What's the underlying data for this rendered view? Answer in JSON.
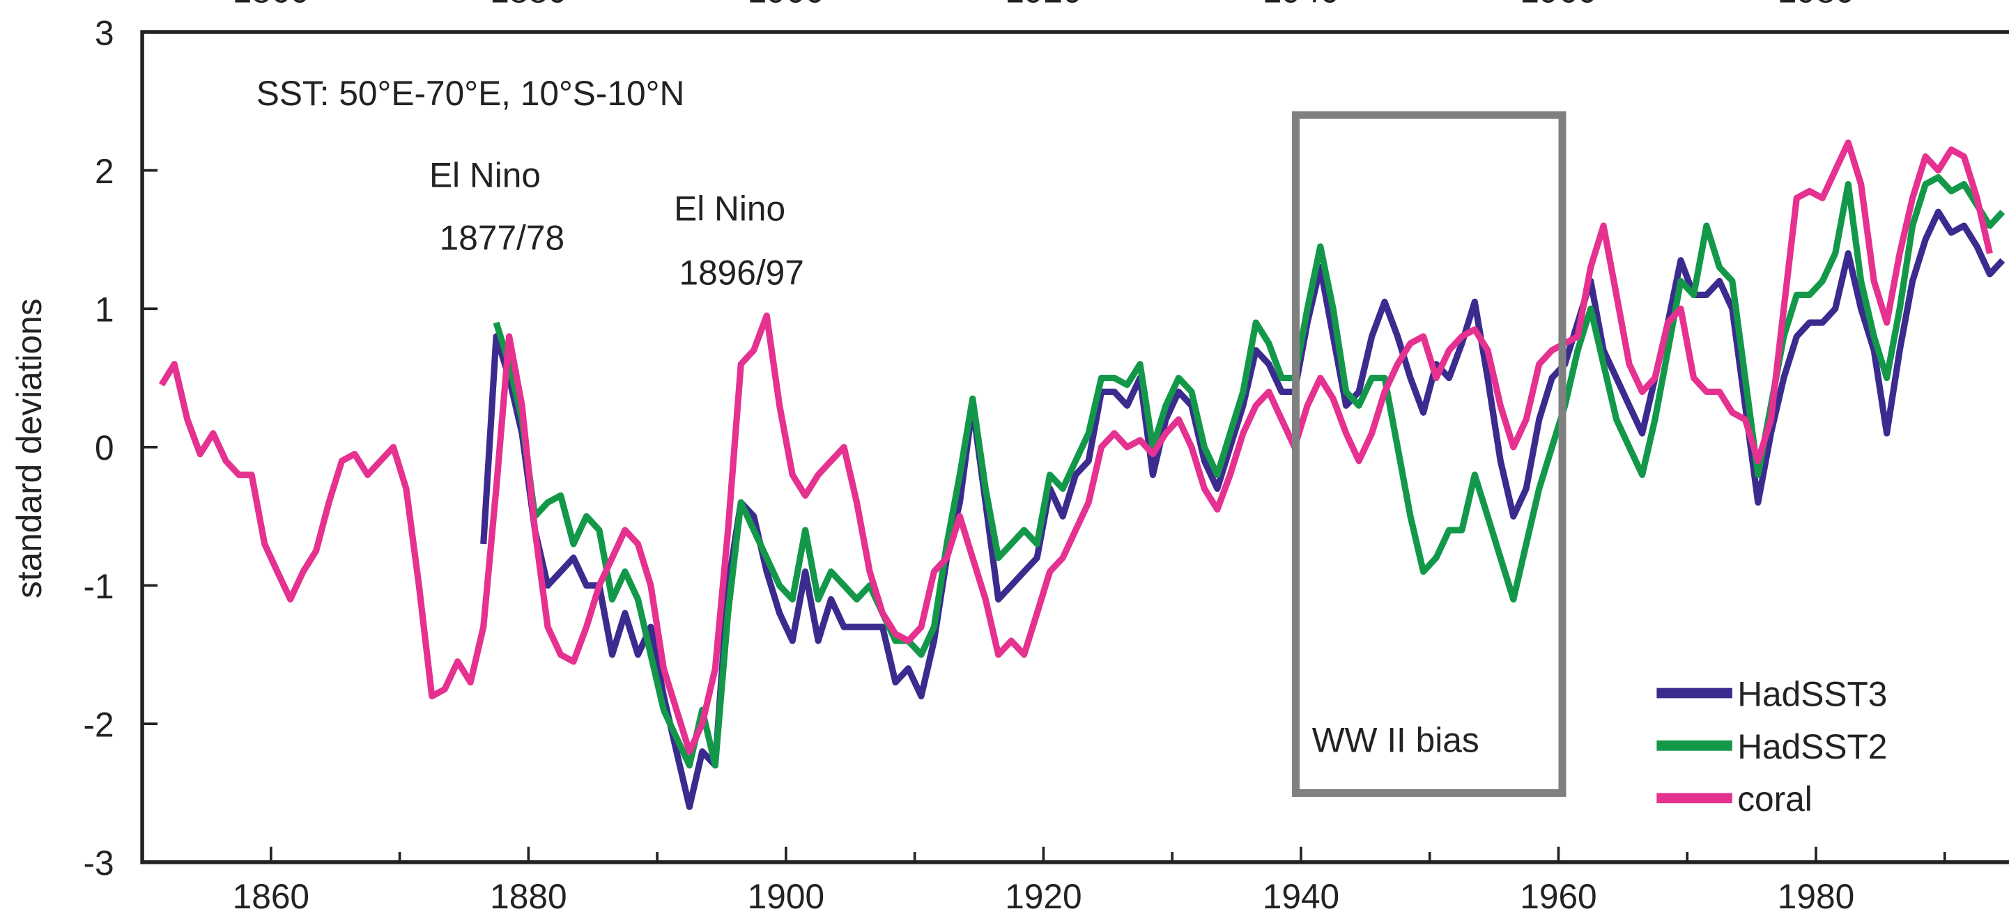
{
  "chart_data": {
    "type": "line",
    "ylabel": "standard deviations",
    "xlim": [
      1850,
      1993.5
    ],
    "ylim": [
      -3,
      3
    ],
    "x_ticks": [
      1860,
      1880,
      1900,
      1920,
      1940,
      1960,
      1980
    ],
    "y_ticks": [
      3,
      2,
      1,
      0,
      -1,
      -2,
      -3
    ],
    "y_tick_labels": [
      "3",
      "2",
      "1",
      "0",
      "-1",
      "-2",
      "-3"
    ],
    "grid": false,
    "legend_placement": "bottom-right",
    "annotations": {
      "region": "SST: 50°E-70°E, 10°S-10°N",
      "elnino1_line1": "El Nino",
      "elnino1_line2": "1877/78",
      "elnino2_line1": "El Nino",
      "elnino2_line2": "1896/97",
      "ww2": "WW II bias"
    },
    "ww2_box": {
      "x_range": [
        1939.6,
        1960.3
      ],
      "y_range": [
        -2.5,
        2.4
      ],
      "color": "#808080"
    },
    "series": [
      {
        "name": "HadSST3",
        "color": "#3b2b8e",
        "start_year": 1876,
        "values": [
          -0.7,
          0.8,
          0.5,
          0.1,
          -0.6,
          -1.0,
          -0.9,
          -0.8,
          -1.0,
          -1.0,
          -1.5,
          -1.2,
          -1.5,
          -1.3,
          -1.8,
          -2.2,
          -2.6,
          -2.2,
          -2.3,
          -1.0,
          -0.4,
          -0.5,
          -0.9,
          -1.2,
          -1.4,
          -0.9,
          -1.4,
          -1.1,
          -1.3,
          -1.3,
          -1.3,
          -1.3,
          -1.7,
          -1.6,
          -1.8,
          -1.4,
          -0.8,
          -0.4,
          0.3,
          -0.4,
          -1.1,
          -1.0,
          -0.9,
          -0.8,
          -0.3,
          -0.5,
          -0.2,
          -0.1,
          0.4,
          0.4,
          0.3,
          0.5,
          -0.2,
          0.2,
          0.4,
          0.3,
          -0.1,
          -0.3,
          0.0,
          0.3,
          0.7,
          0.6,
          0.4,
          0.4,
          0.9,
          1.3,
          0.8,
          0.3,
          0.4,
          0.8,
          1.05,
          0.8,
          0.5,
          0.25,
          0.6,
          0.5,
          0.75,
          1.05,
          0.5,
          -0.1,
          -0.5,
          -0.3,
          0.2,
          0.5,
          0.6,
          0.9,
          1.2,
          0.7,
          0.5,
          0.3,
          0.1,
          0.5,
          0.9,
          1.35,
          1.1,
          1.1,
          1.2,
          1.0,
          0.3,
          -0.4,
          0.1,
          0.5,
          0.8,
          0.9,
          0.9,
          1.0,
          1.4,
          1.0,
          0.7,
          0.1,
          0.7,
          1.2,
          1.5,
          1.7,
          1.55,
          1.6,
          1.45,
          1.25,
          1.35
        ]
      },
      {
        "name": "HadSST2",
        "color": "#13984a",
        "start_year": 1877,
        "values": [
          0.9,
          0.6,
          0.2,
          -0.5,
          -0.4,
          -0.35,
          -0.7,
          -0.5,
          -0.6,
          -1.1,
          -0.9,
          -1.1,
          -1.5,
          -1.9,
          -2.1,
          -2.3,
          -1.9,
          -2.3,
          -1.2,
          -0.4,
          -0.6,
          -0.8,
          -1.0,
          -1.1,
          -0.6,
          -1.1,
          -0.9,
          -1.0,
          -1.1,
          -1.0,
          -1.2,
          -1.4,
          -1.4,
          -1.5,
          -1.3,
          -0.7,
          -0.2,
          0.35,
          -0.3,
          -0.8,
          -0.7,
          -0.6,
          -0.7,
          -0.2,
          -0.3,
          -0.1,
          0.1,
          0.5,
          0.5,
          0.45,
          0.6,
          0.0,
          0.3,
          0.5,
          0.4,
          0.0,
          -0.2,
          0.1,
          0.4,
          0.9,
          0.75,
          0.5,
          0.5,
          1.0,
          1.45,
          1.0,
          0.4,
          0.3,
          0.5,
          0.5,
          0.0,
          -0.5,
          -0.9,
          -0.8,
          -0.6,
          -0.6,
          -0.2,
          -0.5,
          -0.8,
          -1.1,
          -0.7,
          -0.3,
          0.0,
          0.3,
          0.7,
          1.0,
          0.6,
          0.2,
          0.0,
          -0.2,
          0.2,
          0.7,
          1.2,
          1.1,
          1.6,
          1.3,
          1.2,
          0.5,
          -0.2,
          0.3,
          0.8,
          1.1,
          1.1,
          1.2,
          1.4,
          1.9,
          1.2,
          0.8,
          0.5,
          1.0,
          1.6,
          1.9,
          1.95,
          1.85,
          1.9,
          1.75,
          1.6,
          1.7
        ]
      },
      {
        "name": "coral",
        "color": "#e5318f",
        "start_year": 1851,
        "values": [
          0.45,
          0.6,
          0.2,
          -0.05,
          0.1,
          -0.1,
          -0.2,
          -0.2,
          -0.7,
          -0.9,
          -1.1,
          -0.9,
          -0.75,
          -0.4,
          -0.1,
          -0.05,
          -0.2,
          -0.1,
          0.0,
          -0.3,
          -1.0,
          -1.8,
          -1.75,
          -1.55,
          -1.7,
          -1.3,
          -0.3,
          0.8,
          0.3,
          -0.6,
          -1.3,
          -1.5,
          -1.55,
          -1.3,
          -1.0,
          -0.8,
          -0.6,
          -0.7,
          -1.0,
          -1.6,
          -1.9,
          -2.2,
          -2.0,
          -1.6,
          -0.6,
          0.6,
          0.7,
          0.95,
          0.3,
          -0.2,
          -0.35,
          -0.2,
          -0.1,
          0.0,
          -0.4,
          -0.9,
          -1.2,
          -1.35,
          -1.4,
          -1.3,
          -0.9,
          -0.8,
          -0.5,
          -0.8,
          -1.1,
          -1.5,
          -1.4,
          -1.5,
          -1.2,
          -0.9,
          -0.8,
          -0.6,
          -0.4,
          0.0,
          0.1,
          0.0,
          0.05,
          -0.05,
          0.1,
          0.2,
          0.0,
          -0.3,
          -0.45,
          -0.2,
          0.1,
          0.3,
          0.4,
          0.2,
          0.0,
          0.3,
          0.5,
          0.35,
          0.1,
          -0.1,
          0.1,
          0.4,
          0.6,
          0.75,
          0.8,
          0.5,
          0.7,
          0.8,
          0.85,
          0.7,
          0.3,
          0.0,
          0.2,
          0.6,
          0.7,
          0.75,
          0.8,
          1.3,
          1.6,
          1.1,
          0.6,
          0.4,
          0.5,
          0.9,
          1.0,
          0.5,
          0.4,
          0.4,
          0.25,
          0.2,
          -0.1,
          0.2,
          1.0,
          1.8,
          1.85,
          1.8,
          2.0,
          2.2,
          1.9,
          1.2,
          0.9,
          1.4,
          1.8,
          2.1,
          2.0,
          2.15,
          2.1,
          1.8,
          1.4
        ]
      }
    ]
  }
}
